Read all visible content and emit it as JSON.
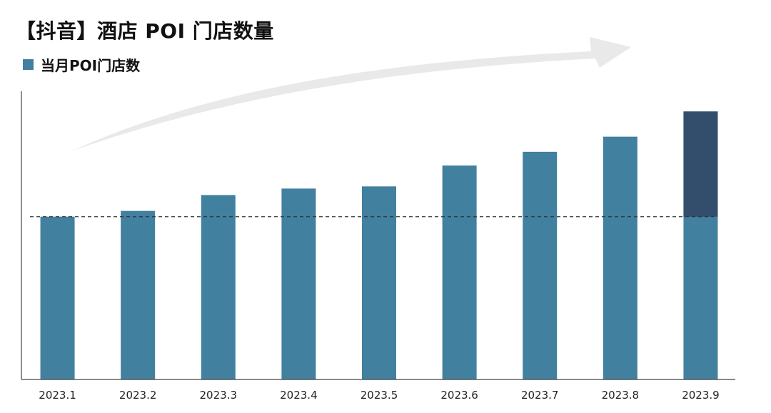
{
  "chart_data": {
    "type": "bar",
    "title": "【抖音】酒店 POI 门店数量",
    "xlabel": "",
    "ylabel": "",
    "categories": [
      "2023.1",
      "2023.2",
      "2023.3",
      "2023.4",
      "2023.5",
      "2023.6",
      "2023.7",
      "2023.8",
      "2023.9"
    ],
    "series": [
      {
        "name": "当月POI门店数",
        "values": [
          226,
          234,
          256,
          265,
          268,
          297,
          316,
          337,
          372
        ]
      }
    ],
    "baseline_value": 226,
    "ylim": [
      0,
      400
    ],
    "y_ticks_visible": false,
    "grid": false,
    "legend_position": "top-left",
    "increase_highlight": "last-bar-above-baseline",
    "trend_arrow": true
  },
  "colors": {
    "bar": "#4280a0",
    "highlight": "#324e6c",
    "axis": "#444444",
    "baseline": "#333333",
    "arrow": "#e9e9e9"
  }
}
